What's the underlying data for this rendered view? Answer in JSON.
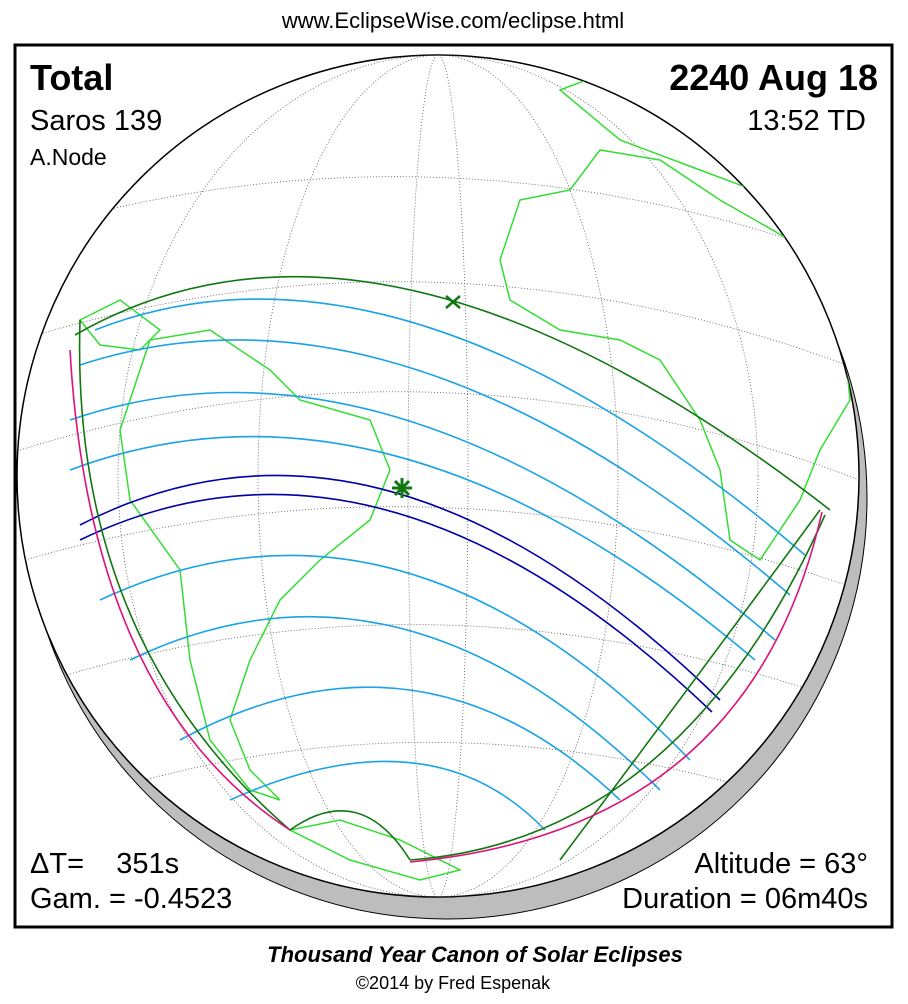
{
  "header": {
    "url": "www.EclipseWise.com/eclipse.html"
  },
  "map": {
    "type": "Total",
    "saros": "Saros 139",
    "node": "A.Node",
    "date": "2240 Aug 18",
    "time": "13:52 TD",
    "delta_t": "ΔT=    351s",
    "gamma": "Gam. = -0.4523",
    "altitude": "Altitude = 63°",
    "duration": "Duration = 06m40s"
  },
  "footer": {
    "title": "Thousand Year Canon of Solar Eclipses",
    "credit": "©2014 by Fred Espenak"
  }
}
